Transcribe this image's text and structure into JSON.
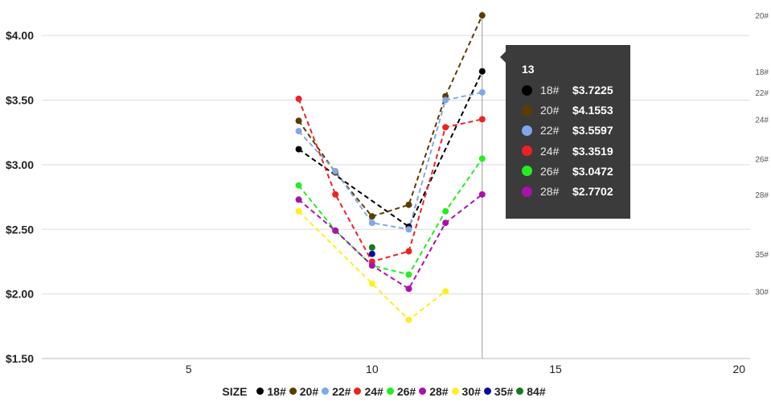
{
  "chart_data": {
    "type": "line",
    "title": "",
    "xlabel": "",
    "ylabel": "",
    "xlim": [
      1,
      20.3
    ],
    "ylim": [
      1.5,
      4.2
    ],
    "grid": true,
    "line_style": "dashed",
    "xticks": [
      5,
      10,
      15,
      20
    ],
    "xtick_labels": [
      "5",
      "10",
      "15",
      "20"
    ],
    "yticks": [
      1.5,
      2.0,
      2.5,
      3.0,
      3.5,
      4.0
    ],
    "ytick_labels": [
      "$1.50",
      "$2.00",
      "$2.50",
      "$3.00",
      "$3.50",
      "$4.00"
    ],
    "series": [
      {
        "name": "18#",
        "color": "#000000",
        "x": [
          8,
          11,
          13
        ],
        "y": [
          3.12,
          2.52,
          3.7225
        ],
        "end_label": "18#",
        "end_value": 3.7225
      },
      {
        "name": "20#",
        "color": "#5c3d00",
        "x": [
          8,
          9,
          10,
          11,
          12,
          13
        ],
        "y": [
          3.34,
          2.94,
          2.6,
          2.69,
          3.53,
          4.1553
        ],
        "end_label": "20#",
        "end_value": 4.1553
      },
      {
        "name": "22#",
        "color": "#7fa8e8",
        "x": [
          8,
          9,
          10,
          11,
          12,
          13
        ],
        "y": [
          3.26,
          2.95,
          2.55,
          2.5,
          3.5,
          3.5597
        ],
        "end_label": "22#",
        "end_value": 3.5597
      },
      {
        "name": "24#",
        "color": "#ee2222",
        "x": [
          8,
          9,
          10,
          11,
          12,
          13
        ],
        "y": [
          3.51,
          2.77,
          2.25,
          2.33,
          3.29,
          3.3519
        ],
        "end_label": "24#",
        "end_value": 3.3519
      },
      {
        "name": "26#",
        "color": "#22ee22",
        "x": [
          8,
          9,
          10,
          11,
          12,
          13
        ],
        "y": [
          2.84,
          2.49,
          2.22,
          2.15,
          2.64,
          3.0472
        ],
        "end_label": "26#",
        "end_value": 3.0472
      },
      {
        "name": "28#",
        "color": "#aa11aa",
        "x": [
          8,
          9,
          10,
          11,
          12,
          13
        ],
        "y": [
          2.73,
          2.49,
          2.22,
          2.04,
          2.55,
          2.7702
        ],
        "end_label": "28#",
        "end_value": 2.7702
      },
      {
        "name": "30#",
        "color": "#ffee22",
        "x": [
          8,
          10,
          11,
          12
        ],
        "y": [
          2.64,
          2.08,
          1.8,
          2.02
        ],
        "end_label": "30#",
        "end_value": 2.02
      },
      {
        "name": "35#",
        "color": "#0a0aa0",
        "x": [
          10
        ],
        "y": [
          2.31
        ],
        "end_label": "35#",
        "end_value": 2.31
      },
      {
        "name": "84#",
        "color": "#117a22",
        "x": [
          10
        ],
        "y": [
          2.36
        ],
        "end_label": "",
        "end_value": 2.36
      }
    ],
    "hover_x": 13,
    "legend": {
      "position": "bottom",
      "title": "SIZE"
    }
  },
  "tooltip": {
    "title": "13",
    "rows": [
      {
        "name": "18#",
        "value": "$3.7225",
        "color": "#000000"
      },
      {
        "name": "20#",
        "value": "$4.1553",
        "color": "#5c3d00"
      },
      {
        "name": "22#",
        "value": "$3.5597",
        "color": "#7fa8e8"
      },
      {
        "name": "24#",
        "value": "$3.3519",
        "color": "#ee2222"
      },
      {
        "name": "26#",
        "value": "$3.0472",
        "color": "#22ee22"
      },
      {
        "name": "28#",
        "value": "$2.7702",
        "color": "#aa11aa"
      }
    ]
  }
}
